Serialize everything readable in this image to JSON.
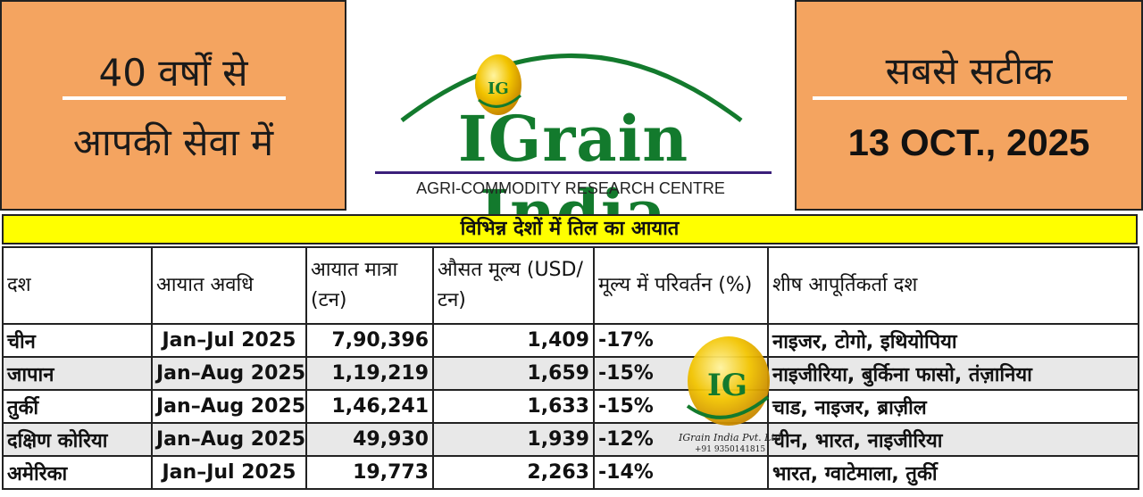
{
  "header": {
    "left_line1": "40 वर्षों से",
    "left_line2": "आपकी सेवा में",
    "right_line1": "सबसे सटीक",
    "right_date": "13 OCT., 2025",
    "logo_name": "IGrain India",
    "logo_subtitle": "AGRI-COMMODITY RESEARCH CENTRE",
    "logo_mark": "IG"
  },
  "colors": {
    "panel": "#F4A460",
    "title_bar": "#FFFF00",
    "logo_green": "#137A2D",
    "negative": "#E02020"
  },
  "table": {
    "title": "विभिन्न देशों में तिल का आयात",
    "headers": [
      "दश",
      "आयात अवधि",
      "आयात मात्रा (टन)",
      "औसत मूल्य (USD/टन)",
      "मूल्य में परिवर्तन (%)",
      "शीष आपूर्तिकर्ता दश"
    ],
    "rows": [
      {
        "country": "चीन",
        "period": "Jan–Jul 2025",
        "qty": "7,90,396",
        "price": "1,409",
        "change": "-17%",
        "suppliers": "नाइजर, टोगो, इथियोपिया"
      },
      {
        "country": "जापान",
        "period": "Jan–Aug 2025",
        "qty": "1,19,219",
        "price": "1,659",
        "change": "-15%",
        "suppliers": "नाइजीरिया, बुर्किना फासो, तंज़ानिया"
      },
      {
        "country": "तुर्की",
        "period": "Jan–Aug 2025",
        "qty": "1,46,241",
        "price": "1,633",
        "change": "-15%",
        "suppliers": "चाड, नाइजर, ब्राज़ील"
      },
      {
        "country": "दक्षिण कोरिया",
        "period": "Jan–Aug 2025",
        "qty": "49,930",
        "price": "1,939",
        "change": "-12%",
        "suppliers": "चीन, भारत, नाइजीरिया"
      },
      {
        "country": "अमेरिका",
        "period": "Jan–Jul 2025",
        "qty": "19,773",
        "price": "2,263",
        "change": "-14%",
        "suppliers": "भारत, ग्वाटेमाला, तुर्की"
      }
    ]
  },
  "watermark": {
    "mark": "IG",
    "company": "IGrain India Pvt. Ltd.",
    "phone": "+91 9350141815"
  }
}
